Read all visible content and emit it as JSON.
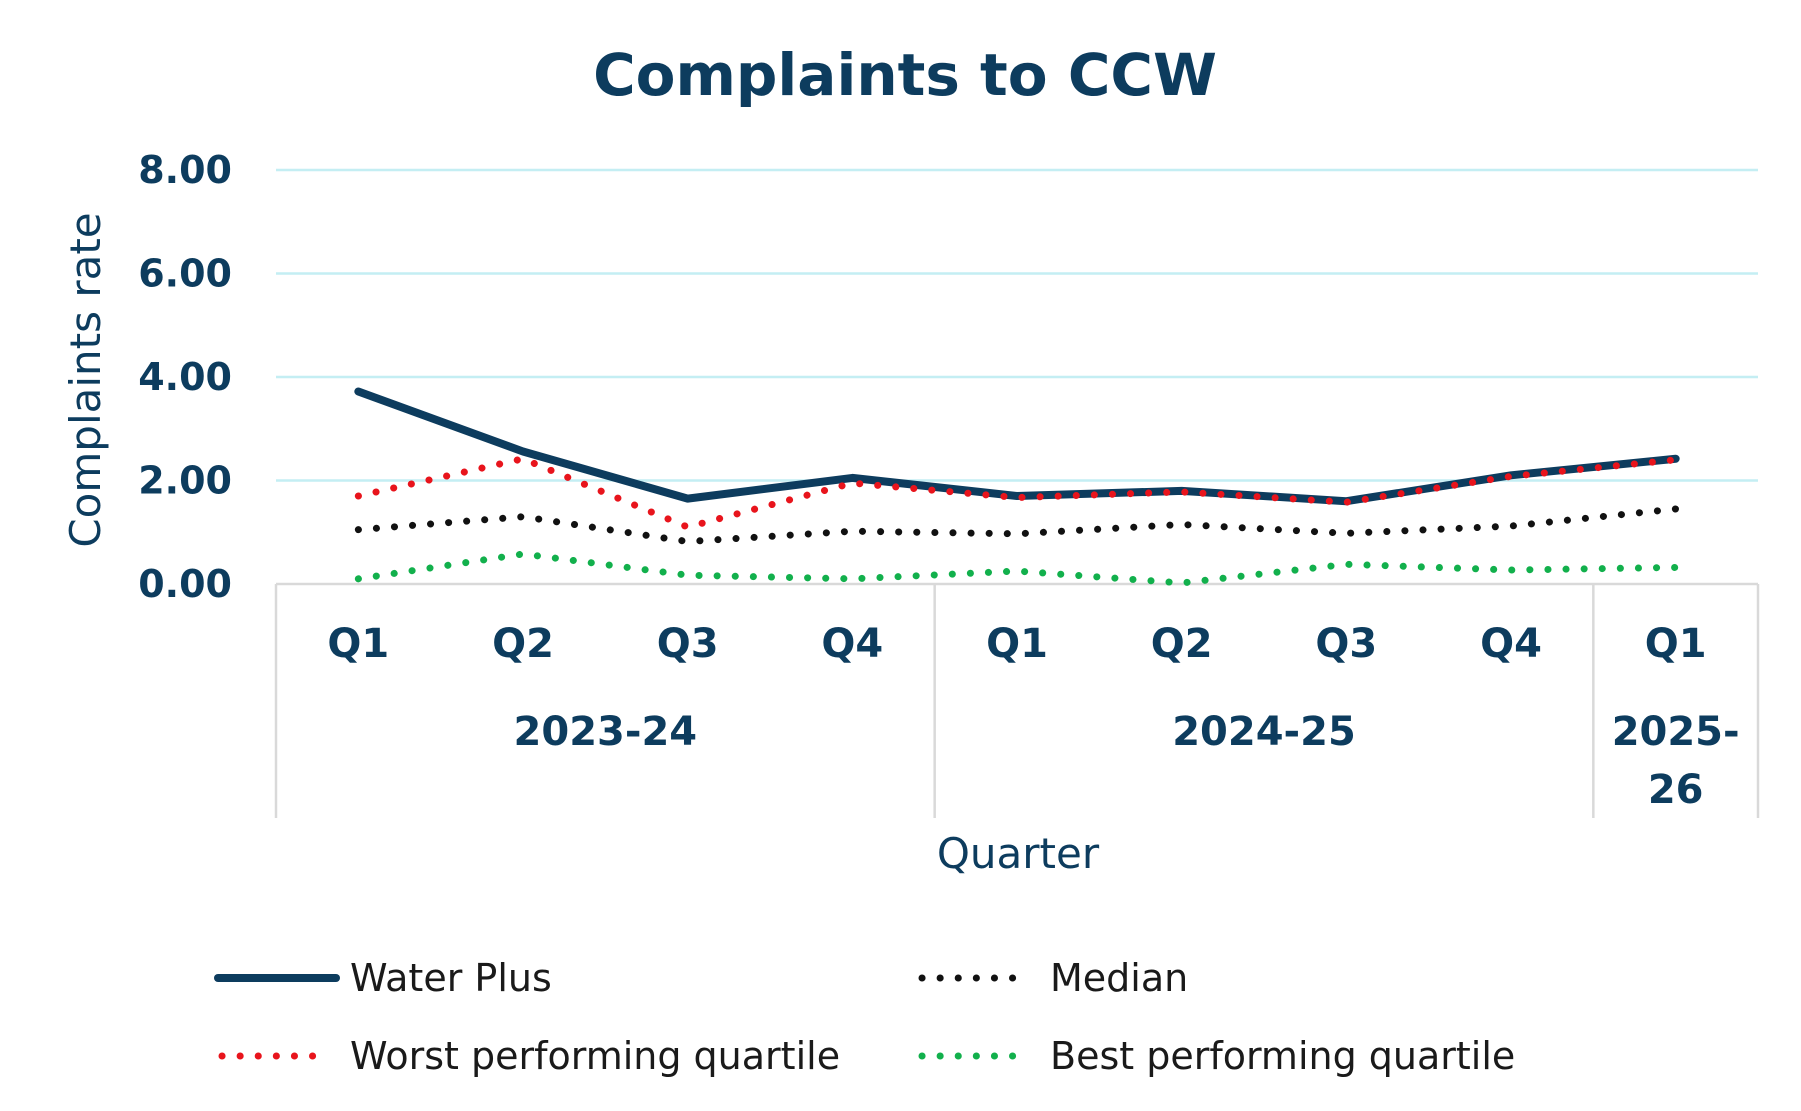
{
  "chart_data": {
    "type": "line",
    "title": "Complaints to CCW",
    "xlabel": "Quarter",
    "ylabel": "Complaints rate",
    "ylim": [
      0,
      8
    ],
    "yticks": [
      "0.00",
      "2.00",
      "4.00",
      "6.00",
      "8.00"
    ],
    "grid": true,
    "legend_position": "bottom",
    "categories": [
      "Q1",
      "Q2",
      "Q3",
      "Q4",
      "Q1",
      "Q2",
      "Q3",
      "Q4",
      "Q1"
    ],
    "groups": [
      {
        "label": "2023-24",
        "lines": [
          "2023-24"
        ],
        "count": 4
      },
      {
        "label": "2024-25",
        "lines": [
          "2024-25"
        ],
        "count": 4
      },
      {
        "label": "2025-26",
        "lines": [
          "2025-",
          "26"
        ],
        "count": 1
      }
    ],
    "series": [
      {
        "name": "Water Plus",
        "color": "#0d3c5e",
        "style": "solid",
        "values": [
          3.72,
          2.56,
          1.65,
          2.05,
          1.7,
          1.8,
          1.6,
          2.1,
          2.42
        ]
      },
      {
        "name": "Worst performing quartile",
        "color": "#e8141c",
        "style": "dotted",
        "values": [
          1.7,
          2.42,
          1.1,
          1.95,
          1.67,
          1.78,
          1.58,
          2.08,
          2.4
        ]
      },
      {
        "name": "Median",
        "color": "#111111",
        "style": "dotted",
        "values": [
          1.05,
          1.3,
          0.82,
          1.02,
          0.97,
          1.15,
          0.98,
          1.12,
          1.45
        ]
      },
      {
        "name": "Best performing quartile",
        "color": "#12b04c",
        "style": "dotted",
        "values": [
          0.1,
          0.58,
          0.17,
          0.1,
          0.25,
          0.02,
          0.38,
          0.27,
          0.32
        ]
      }
    ]
  }
}
